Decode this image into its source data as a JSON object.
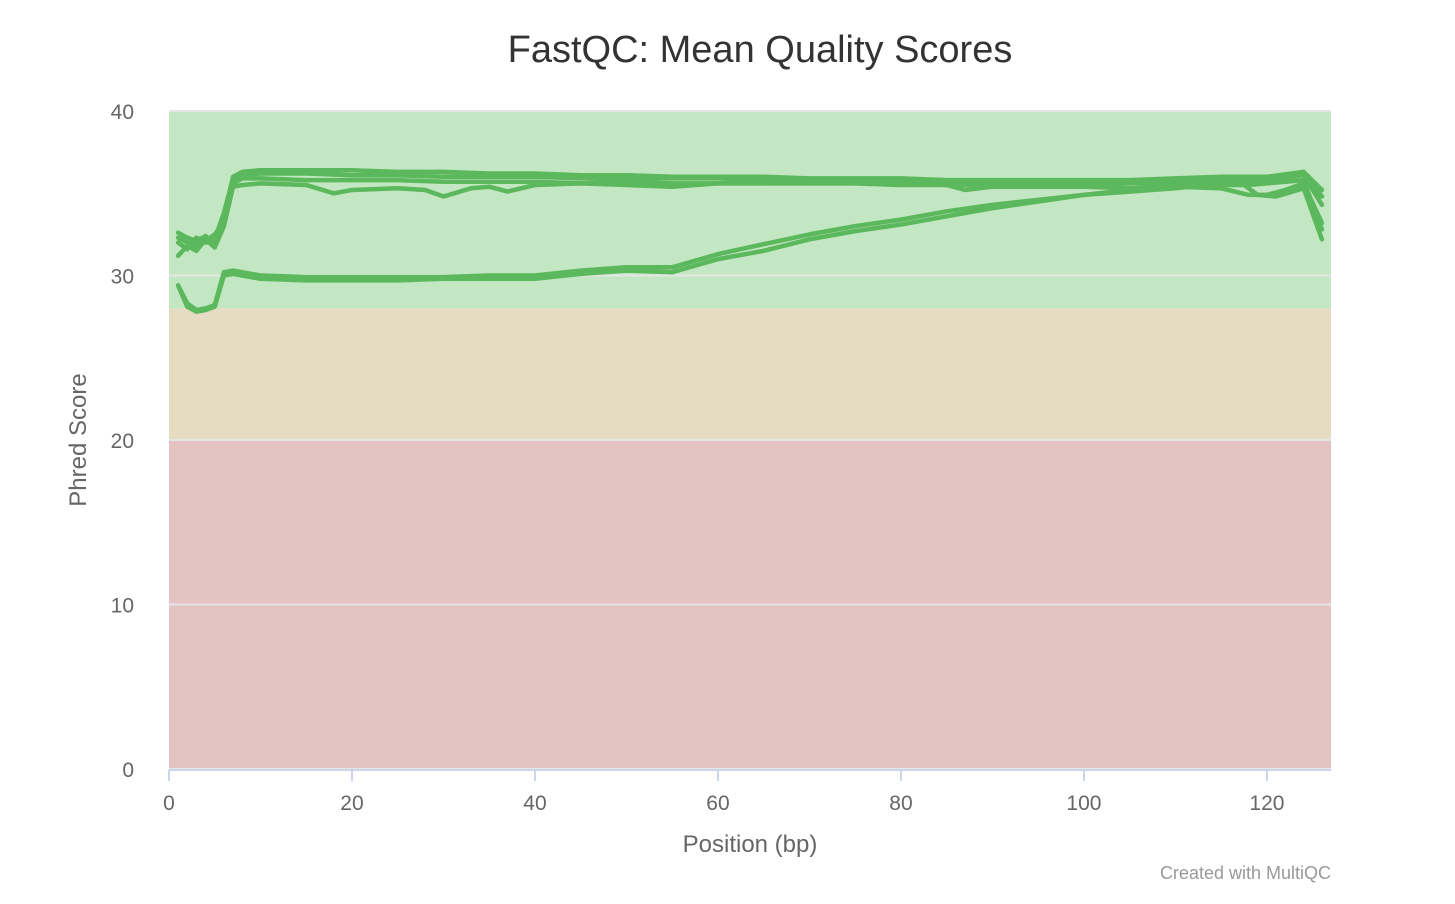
{
  "chart_data": {
    "type": "line",
    "title": "FastQC: Mean Quality Scores",
    "xlabel": "Position (bp)",
    "ylabel": "Phred Score",
    "xlim": [
      0,
      127
    ],
    "ylim": [
      0,
      40
    ],
    "x_ticks": [
      0,
      20,
      40,
      60,
      80,
      100,
      120
    ],
    "y_ticks": [
      0,
      10,
      20,
      30,
      40
    ],
    "grid": true,
    "credit": "Created with MultiQC",
    "line_color": "#5cb85c",
    "bands": [
      {
        "from": 28,
        "to": 40,
        "color": "#c3e6c3"
      },
      {
        "from": 20,
        "to": 28,
        "color": "#e6dcc3"
      },
      {
        "from": 0,
        "to": 20,
        "color": "#e6c3c3"
      }
    ],
    "series": [
      {
        "x": [
          1,
          2,
          3,
          4,
          5,
          6,
          7,
          8,
          10,
          15,
          20,
          25,
          30,
          35,
          40,
          45,
          50,
          55,
          60,
          65,
          70,
          75,
          80,
          85,
          90,
          95,
          100,
          105,
          110,
          115,
          120,
          124,
          126
        ],
        "y": [
          32.6,
          32.3,
          32.1,
          32.4,
          31.9,
          33.5,
          36.0,
          36.3,
          36.4,
          36.4,
          36.4,
          36.3,
          36.3,
          36.2,
          36.2,
          36.1,
          36.1,
          36.0,
          36.0,
          36.0,
          35.9,
          35.9,
          35.9,
          35.8,
          35.8,
          35.8,
          35.8,
          35.8,
          35.9,
          36.0,
          36.0,
          36.3,
          35.2
        ]
      },
      {
        "x": [
          1,
          2,
          3,
          4,
          5,
          6,
          7,
          8,
          10,
          15,
          20,
          25,
          30,
          35,
          40,
          45,
          50,
          55,
          60,
          65,
          70,
          75,
          80,
          85,
          90,
          95,
          100,
          105,
          110,
          115,
          120,
          124,
          126
        ],
        "y": [
          32.0,
          31.6,
          32.3,
          32.0,
          32.2,
          33.8,
          35.9,
          36.1,
          36.2,
          36.2,
          36.1,
          36.1,
          36.0,
          36.0,
          36.0,
          35.9,
          35.9,
          35.9,
          35.9,
          35.8,
          35.8,
          35.8,
          35.7,
          35.6,
          35.7,
          35.6,
          35.6,
          35.7,
          35.8,
          35.9,
          35.9,
          36.3,
          34.8
        ]
      },
      {
        "x": [
          1,
          2,
          3,
          4,
          5,
          6,
          7,
          8,
          10,
          15,
          20,
          25,
          30,
          35,
          40,
          45,
          50,
          55,
          60,
          65,
          70,
          75,
          80,
          85,
          90,
          95,
          100,
          105,
          110,
          115,
          120,
          124,
          126
        ],
        "y": [
          32.3,
          32.0,
          31.8,
          32.1,
          32.5,
          33.2,
          35.6,
          35.9,
          35.9,
          35.8,
          35.8,
          35.8,
          35.7,
          35.7,
          35.7,
          35.6,
          35.7,
          35.6,
          35.6,
          35.6,
          35.6,
          35.6,
          35.5,
          35.5,
          35.5,
          35.5,
          35.5,
          35.6,
          35.6,
          35.7,
          35.8,
          36.1,
          34.3
        ]
      },
      {
        "x": [
          1,
          2,
          3,
          4,
          5,
          6,
          7,
          8,
          10,
          15,
          18,
          20,
          25,
          28,
          30,
          33,
          35,
          37,
          40,
          45,
          50,
          55,
          60,
          65,
          70,
          75,
          80,
          85,
          87,
          90,
          95,
          100,
          105,
          110,
          115,
          118,
          120,
          122,
          124,
          126
        ],
        "y": [
          31.2,
          31.8,
          31.5,
          32.2,
          31.7,
          33.0,
          35.4,
          35.5,
          35.6,
          35.5,
          35.0,
          35.2,
          35.3,
          35.2,
          34.8,
          35.3,
          35.4,
          35.1,
          35.5,
          35.6,
          35.5,
          35.4,
          35.6,
          35.6,
          35.7,
          35.6,
          35.6,
          35.5,
          35.2,
          35.4,
          35.4,
          35.4,
          35.3,
          35.4,
          35.3,
          34.9,
          34.9,
          35.2,
          35.6,
          33.2
        ]
      },
      {
        "x": [
          1,
          2,
          3,
          4,
          5,
          6,
          7,
          8,
          10,
          15,
          20,
          25,
          30,
          35,
          40,
          45,
          50,
          55,
          60,
          65,
          70,
          75,
          80,
          85,
          90,
          95,
          100,
          105,
          110,
          115,
          118,
          120,
          122,
          124,
          126
        ],
        "y": [
          29.4,
          28.1,
          27.8,
          27.9,
          28.1,
          30.0,
          30.1,
          30.0,
          29.8,
          29.7,
          29.7,
          29.7,
          29.8,
          29.8,
          29.8,
          30.1,
          30.3,
          30.2,
          31.0,
          31.5,
          32.2,
          32.7,
          33.1,
          33.6,
          34.1,
          34.5,
          34.9,
          35.2,
          35.4,
          35.5,
          35.5,
          35.6,
          35.7,
          35.8,
          32.8
        ]
      },
      {
        "x": [
          1,
          2,
          3,
          4,
          5,
          6,
          7,
          8,
          10,
          15,
          20,
          25,
          30,
          35,
          40,
          45,
          50,
          55,
          60,
          65,
          70,
          75,
          80,
          85,
          90,
          95,
          100,
          105,
          110,
          115,
          117,
          119,
          121,
          124,
          126
        ],
        "y": [
          29.4,
          28.3,
          27.9,
          28.0,
          28.2,
          30.2,
          30.3,
          30.2,
          30.0,
          29.9,
          29.9,
          29.9,
          29.9,
          30.0,
          30.0,
          30.3,
          30.5,
          30.5,
          31.3,
          31.9,
          32.5,
          33.0,
          33.4,
          33.9,
          34.3,
          34.6,
          34.9,
          35.1,
          35.3,
          35.6,
          35.7,
          34.9,
          34.8,
          35.3,
          32.2
        ]
      }
    ]
  }
}
